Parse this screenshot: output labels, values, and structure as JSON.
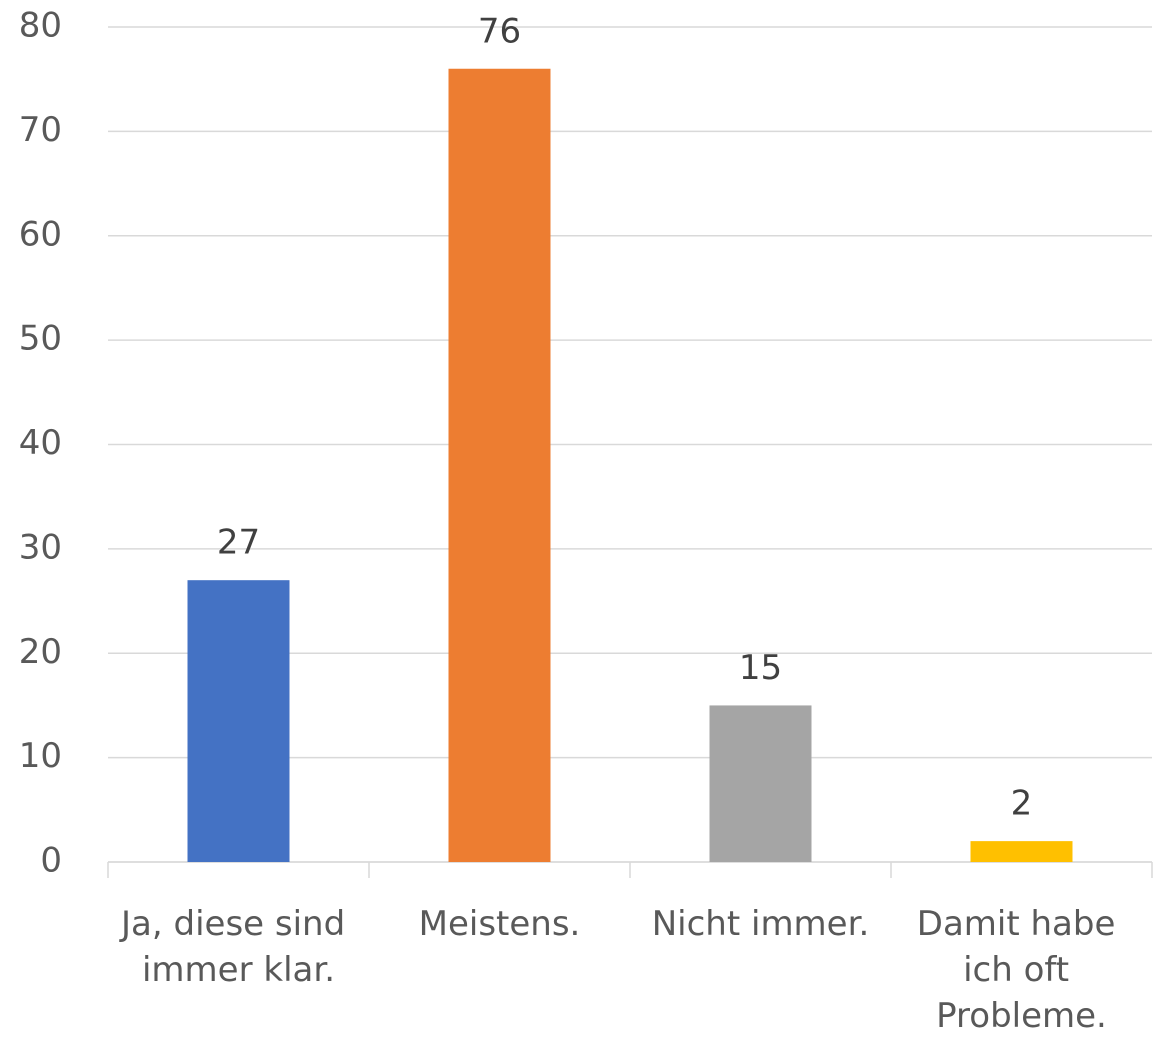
{
  "chart_data": {
    "type": "bar",
    "categories": [
      "Ja, diese sind immer klar.",
      "Meistens.",
      "Nicht immer.",
      "Damit habe ich oft Probleme."
    ],
    "values": [
      27,
      76,
      15,
      2
    ],
    "colors": [
      "#4472c4",
      "#ed7d31",
      "#a5a5a5",
      "#ffc000"
    ],
    "ylim": [
      0,
      80
    ],
    "yticks": [
      0,
      10,
      20,
      30,
      40,
      50,
      60,
      70,
      80
    ],
    "grid": true,
    "data_labels": true
  }
}
